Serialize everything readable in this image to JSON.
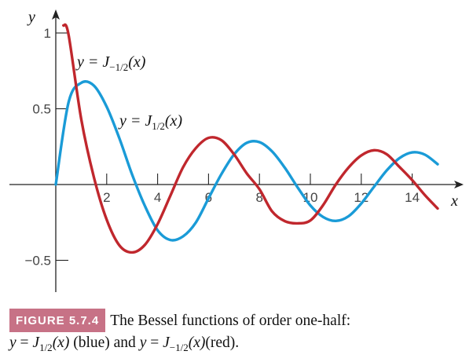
{
  "chart_data": {
    "type": "line",
    "xlabel": "x",
    "ylabel": "y",
    "xlim": [
      0,
      15.7
    ],
    "ylim": [
      -0.7,
      1.1
    ],
    "x_ticks": [
      2,
      4,
      6,
      8,
      10,
      12,
      14
    ],
    "y_ticks": [
      1,
      0.5,
      -0.5
    ],
    "y_tick_labels": [
      "1",
      "0.5",
      "−0.5"
    ],
    "series": [
      {
        "key": "J_half",
        "label_prefix": "y = J",
        "label_sub": "1/2",
        "label_suffix": "(x)",
        "color": "#1a9bd7",
        "x": [
          0,
          0.5,
          1,
          1.5,
          2,
          2.5,
          3,
          3.5,
          4,
          4.5,
          5,
          5.5,
          6,
          6.5,
          7,
          7.5,
          8,
          8.5,
          9,
          9.5,
          10,
          10.5,
          11,
          11.5,
          12,
          12.5,
          13,
          13.5,
          14,
          14.5,
          15
        ],
        "y": [
          0,
          0.541,
          0.671,
          0.652,
          0.513,
          0.304,
          0.065,
          -0.141,
          -0.302,
          -0.366,
          -0.342,
          -0.251,
          -0.091,
          0.067,
          0.198,
          0.275,
          0.28,
          0.218,
          0.11,
          -0.019,
          -0.138,
          -0.214,
          -0.24,
          -0.209,
          -0.125,
          -0.015,
          0.093,
          0.174,
          0.212,
          0.197,
          0.134
        ]
      },
      {
        "key": "J_neg_half",
        "label_prefix": "y = J",
        "label_sub": "−1/2",
        "label_suffix": "(x)",
        "color": "#c0272d",
        "x": [
          0.3,
          0.5,
          1,
          1.5,
          2,
          2.5,
          3,
          3.5,
          4,
          4.5,
          5,
          5.5,
          6,
          6.5,
          7,
          7.5,
          8,
          8.5,
          9,
          9.5,
          10,
          10.5,
          11,
          11.5,
          12,
          12.5,
          13,
          13.5,
          14,
          14.5,
          15
        ],
        "y": [
          1.05,
          0.99,
          0.431,
          0.046,
          -0.232,
          -0.402,
          -0.448,
          -0.398,
          -0.261,
          -0.074,
          0.114,
          0.24,
          0.308,
          0.293,
          0.2,
          0.074,
          -0.031,
          -0.178,
          -0.242,
          -0.256,
          -0.237,
          -0.136,
          0.0,
          0.112,
          0.192,
          0.226,
          0.2,
          0.116,
          0.029,
          -0.07,
          -0.158
        ]
      }
    ]
  },
  "caption": {
    "figure_label": "FIGURE 5.7.4",
    "line1": "The Bessel functions of order one-half:",
    "l2_y1": "y",
    "l2_eq1": " = ",
    "l2_J1": "J",
    "l2_sub1": "1/2",
    "l2_x1": "(x)",
    "l2_blue": " (blue) and ",
    "l2_y2": "y",
    "l2_eq2": " = ",
    "l2_J2": "J",
    "l2_sub2": "−1/2",
    "l2_x2": "(x)",
    "l2_red": "(red)."
  }
}
